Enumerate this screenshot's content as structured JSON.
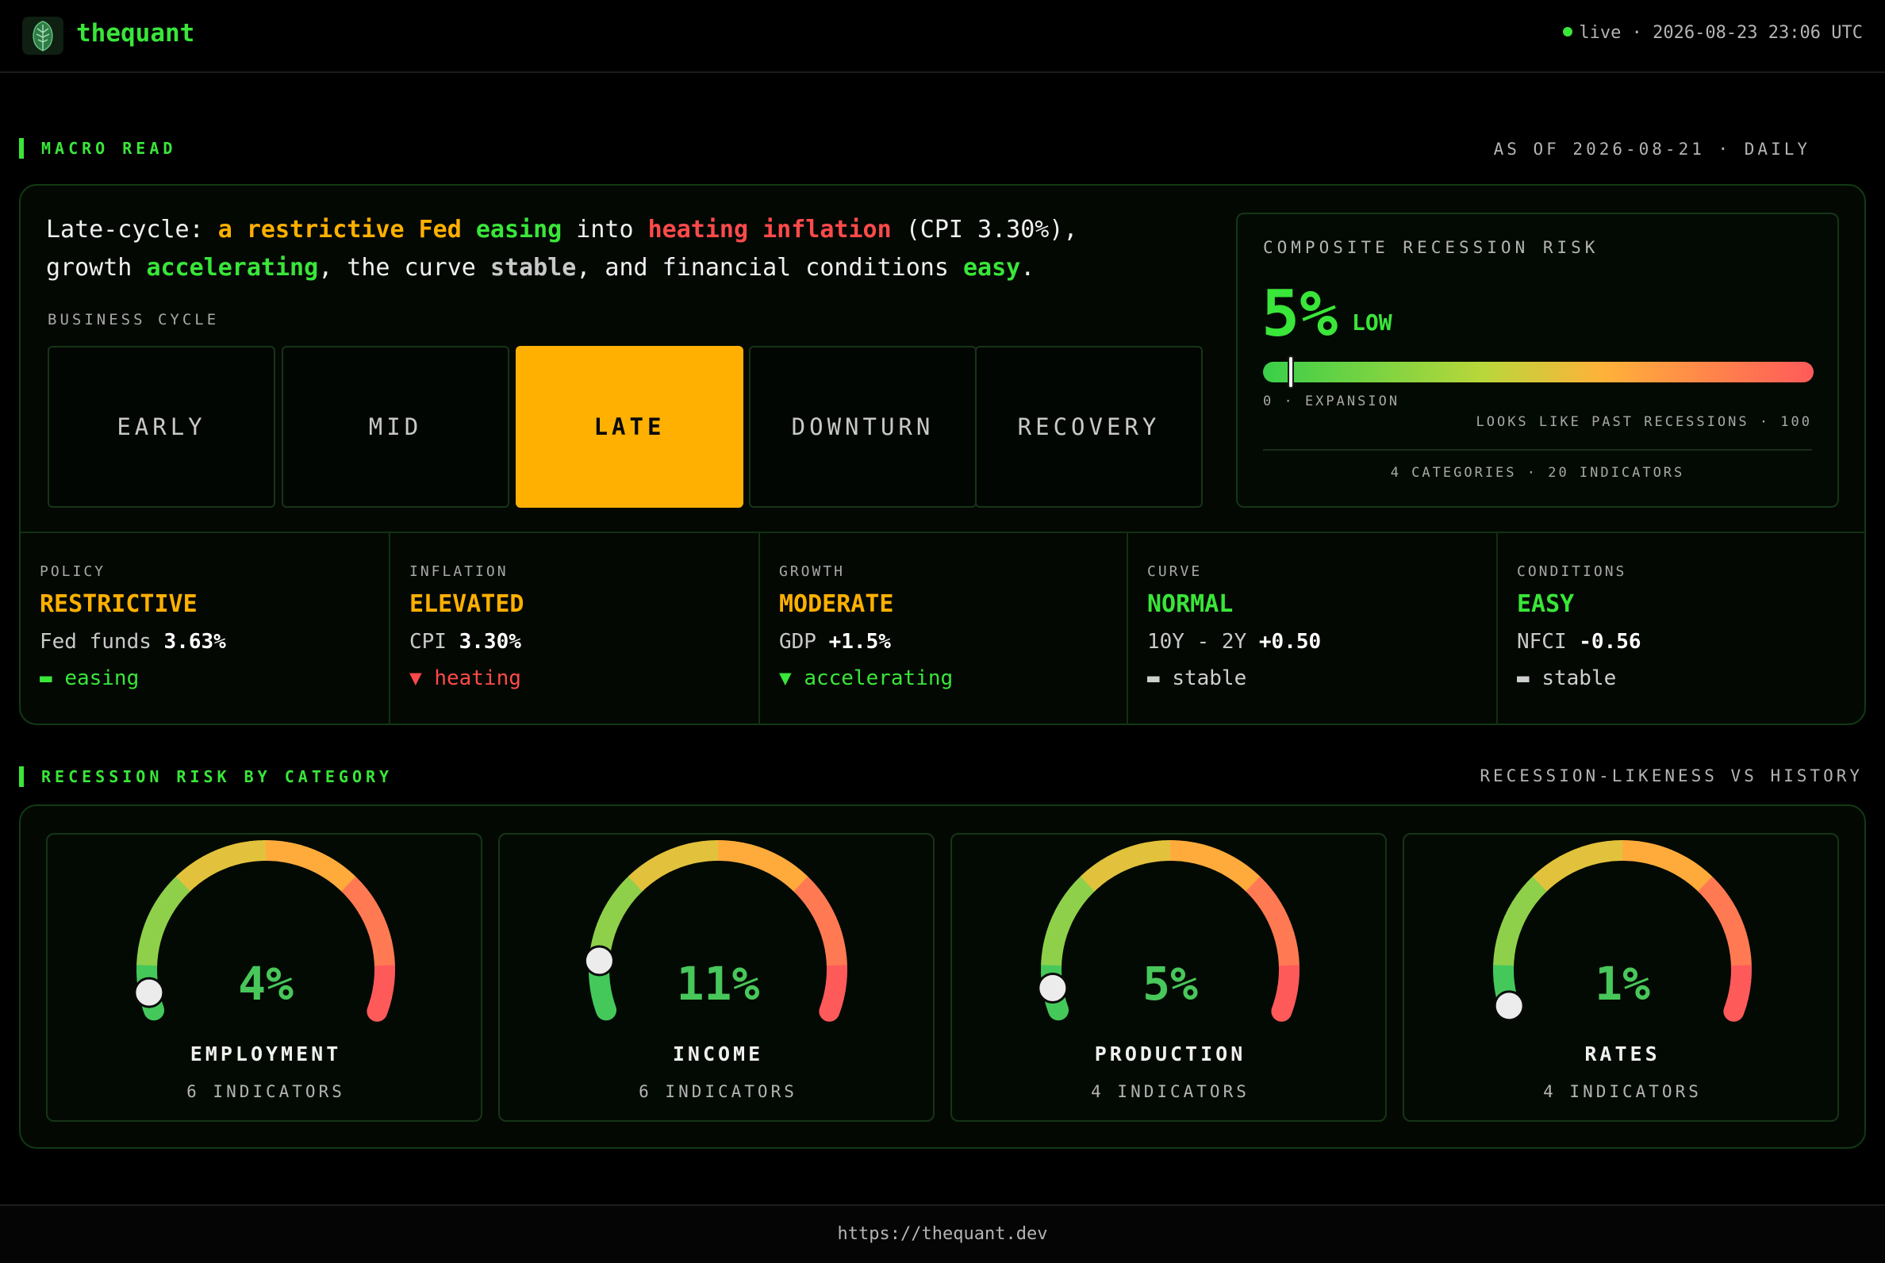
{
  "header": {
    "brand": "thequant",
    "logo_icon": "leaf-icon",
    "live_label": "live",
    "timestamp": "2026-08-23 23:06 UTC"
  },
  "macro": {
    "section_title": "MACRO READ",
    "as_of": "AS OF 2026-08-21 · DAILY",
    "summary": {
      "p1": "Late-cycle: ",
      "p2": "a restrictive Fed",
      "p3": " ",
      "p4": "easing",
      "p5": " into ",
      "p6": "heating inflation",
      "p7": " (CPI 3.30%),",
      "p8": "growth ",
      "p9": "accelerating",
      "p10": ", the curve ",
      "p11": "stable",
      "p12": ", and financial conditions ",
      "p13": "easy",
      "p14": "."
    },
    "business_cycle_label": "BUSINESS CYCLE",
    "phases": [
      "EARLY",
      "MID",
      "LATE",
      "DOWNTURN",
      "RECOVERY"
    ],
    "active_phase": "LATE",
    "composite": {
      "title": "COMPOSITE RECESSION RISK",
      "value": "5%",
      "value_number": 5,
      "level": "LOW",
      "scale_left": "0 · EXPANSION",
      "scale_right": "LOOKS LIKE PAST RECESSIONS · 100",
      "footer": "4 CATEGORIES · 20 INDICATORS"
    },
    "metrics": [
      {
        "label": "POLICY",
        "status": "RESTRICTIVE",
        "status_color": "#ffb000",
        "line_label": "Fed funds ",
        "line_value": "3.63%",
        "trend_icon": "▬",
        "trend_text": "easing",
        "trend_color": "#39e639"
      },
      {
        "label": "INFLATION",
        "status": "ELEVATED",
        "status_color": "#ffb000",
        "line_label": "CPI ",
        "line_value": "3.30%",
        "trend_icon": "▼",
        "trend_text": "heating",
        "trend_color": "#ff4a4a"
      },
      {
        "label": "GROWTH",
        "status": "MODERATE",
        "status_color": "#ffb000",
        "line_label": "GDP ",
        "line_value": "+1.5%",
        "trend_icon": "▼",
        "trend_text": "accelerating",
        "trend_color": "#39e639"
      },
      {
        "label": "CURVE",
        "status": "NORMAL",
        "status_color": "#39e639",
        "line_label": "10Y - 2Y ",
        "line_value": "+0.50",
        "trend_icon": "▬",
        "trend_text": "stable",
        "trend_color": "#cfcfcf"
      },
      {
        "label": "CONDITIONS",
        "status": "EASY",
        "status_color": "#39e639",
        "line_label": "NFCI ",
        "line_value": "-0.56",
        "trend_icon": "▬",
        "trend_text": "stable",
        "trend_color": "#cfcfcf"
      }
    ]
  },
  "categories": {
    "section_title": "RECESSION RISK BY CATEGORY",
    "right_label": "RECESSION-LIKENESS VS HISTORY",
    "items": [
      {
        "name": "EMPLOYMENT",
        "pct": "4%",
        "value": 4,
        "indicators": "6 INDICATORS"
      },
      {
        "name": "INCOME",
        "pct": "11%",
        "value": 11,
        "indicators": "6 INDICATORS"
      },
      {
        "name": "PRODUCTION",
        "pct": "5%",
        "value": 5,
        "indicators": "4 INDICATORS"
      },
      {
        "name": "RATES",
        "pct": "1%",
        "value": 1,
        "indicators": "4 INDICATORS"
      }
    ]
  },
  "footer": {
    "url": "https://thequant.dev"
  }
}
